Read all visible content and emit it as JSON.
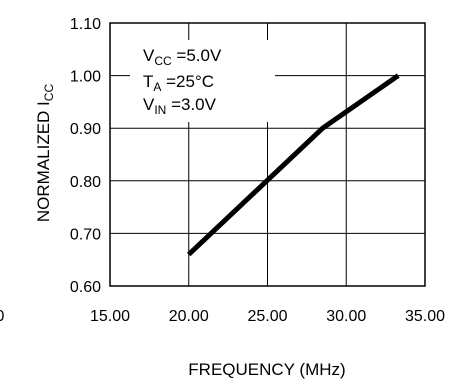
{
  "chart_data": {
    "type": "line",
    "title": "",
    "xlabel": "FREQUENCY (MHz)",
    "ylabel": {
      "main": "NORMALIZED I",
      "sub": "CC"
    },
    "x_ticks": [
      "15.00",
      "20.00",
      "25.00",
      "30.00",
      "35.00"
    ],
    "y_ticks": [
      "1.10",
      "1.00",
      "0.90",
      "0.80",
      "0.70",
      "0.60"
    ],
    "clipped_left_label": "0",
    "xlim": [
      15,
      35
    ],
    "ylim": [
      0.6,
      1.1
    ],
    "grid": true,
    "series": [
      {
        "x": [
          20.0,
          28.5,
          33.3
        ],
        "y": [
          0.66,
          0.9,
          1.0
        ]
      }
    ],
    "annotations": [
      {
        "main": "V",
        "sub": "CC",
        "rest": " =5.0V"
      },
      {
        "main": "T",
        "sub": "A",
        "rest": " =25°C"
      },
      {
        "main": "V",
        "sub": "IN",
        "rest": " =3.0V"
      }
    ],
    "colors": {
      "line": "#000000",
      "grid": "#000000",
      "background": "#ffffff"
    }
  }
}
